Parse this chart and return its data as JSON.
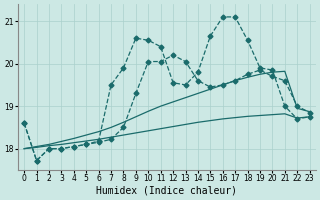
{
  "xlabel": "Humidex (Indice chaleur)",
  "background_color": "#cce8e4",
  "grid_color": "#aad0cc",
  "line_color": "#1a6b6b",
  "xlim": [
    -0.5,
    23.5
  ],
  "ylim": [
    17.5,
    21.4
  ],
  "yticks": [
    18,
    19,
    20,
    21
  ],
  "xticks": [
    0,
    1,
    2,
    3,
    4,
    5,
    6,
    7,
    8,
    9,
    10,
    11,
    12,
    13,
    14,
    15,
    16,
    17,
    18,
    19,
    20,
    21,
    22,
    23
  ],
  "series": [
    {
      "x": [
        0,
        1,
        2,
        3,
        4,
        5,
        6,
        7,
        8,
        9,
        10,
        11,
        12,
        13,
        14,
        15,
        16,
        17,
        18,
        19,
        20,
        21,
        22,
        23
      ],
      "y": [
        18.0,
        18.03,
        18.07,
        18.1,
        18.14,
        18.18,
        18.22,
        18.27,
        18.32,
        18.37,
        18.42,
        18.47,
        18.52,
        18.57,
        18.62,
        18.66,
        18.7,
        18.73,
        18.76,
        18.78,
        18.8,
        18.82,
        18.72,
        18.75
      ],
      "style": "-",
      "marker": null,
      "ms": 0,
      "lw": 0.9
    },
    {
      "x": [
        0,
        1,
        2,
        3,
        4,
        5,
        6,
        7,
        8,
        9,
        10,
        11,
        12,
        13,
        14,
        15,
        16,
        17,
        18,
        19,
        20,
        21,
        22,
        23
      ],
      "y": [
        18.0,
        18.05,
        18.1,
        18.17,
        18.24,
        18.32,
        18.4,
        18.5,
        18.62,
        18.75,
        18.88,
        19.0,
        19.1,
        19.2,
        19.3,
        19.4,
        19.5,
        19.6,
        19.68,
        19.75,
        19.8,
        19.82,
        18.95,
        18.87
      ],
      "style": "-",
      "marker": null,
      "ms": 0,
      "lw": 0.9
    },
    {
      "x": [
        0,
        1,
        2,
        3,
        4,
        5,
        6,
        7,
        8,
        9,
        10,
        11,
        12,
        13,
        14,
        15,
        16,
        17,
        18,
        19,
        20,
        21,
        22,
        23
      ],
      "y": [
        18.6,
        17.72,
        18.0,
        18.0,
        18.05,
        18.1,
        18.15,
        18.22,
        18.5,
        19.3,
        20.05,
        20.05,
        20.2,
        20.05,
        19.6,
        19.45,
        19.5,
        19.6,
        19.75,
        19.85,
        19.7,
        19.6,
        19.0,
        18.85
      ],
      "style": "--",
      "marker": "D",
      "ms": 2.5,
      "lw": 0.9
    },
    {
      "x": [
        0,
        1,
        2,
        3,
        4,
        5,
        6,
        7,
        8,
        9,
        10,
        11,
        12,
        13,
        14,
        15,
        16,
        17,
        18,
        19,
        20,
        21,
        22,
        23
      ],
      "y": [
        18.6,
        17.72,
        18.0,
        18.0,
        18.05,
        18.1,
        18.18,
        19.5,
        19.9,
        20.6,
        20.55,
        20.4,
        19.55,
        19.5,
        19.8,
        20.65,
        21.1,
        21.1,
        20.55,
        19.9,
        19.85,
        19.0,
        18.7,
        18.75
      ],
      "style": "--",
      "marker": "D",
      "ms": 2.5,
      "lw": 0.9
    }
  ]
}
